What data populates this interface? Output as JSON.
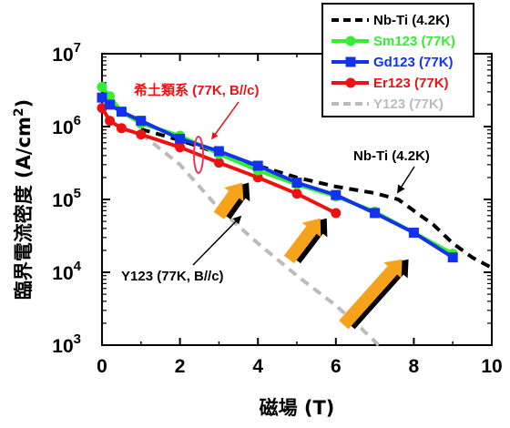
{
  "chart_data": {
    "type": "line",
    "xlabel": "磁場 (T)",
    "ylabel": "臨界電流密度 (A/cm2)",
    "ylabel_main": "臨界電流密度 (A/cm",
    "ylabel_sup": "2",
    "ylabel_end": ")",
    "xlim": [
      0,
      10
    ],
    "ylim": [
      1000,
      10000000
    ],
    "yscale": "log",
    "grid": false,
    "legend_position": "top-right",
    "x_ticks": [
      "0",
      "2",
      "4",
      "6",
      "8",
      "10"
    ],
    "y_ticks": [
      {
        "base": "10",
        "exp": "3"
      },
      {
        "base": "10",
        "exp": "4"
      },
      {
        "base": "10",
        "exp": "5"
      },
      {
        "base": "10",
        "exp": "6"
      },
      {
        "base": "10",
        "exp": "7"
      }
    ],
    "series": [
      {
        "name": "Nb-Ti (4.2K)",
        "color": "#000000",
        "style": "dashed",
        "marker": "none",
        "points": [
          [
            1,
            920000
          ],
          [
            2,
            650000
          ],
          [
            3,
            430000
          ],
          [
            4,
            290000
          ],
          [
            5,
            200000
          ],
          [
            6,
            150000
          ],
          [
            7,
            122000
          ],
          [
            7.6,
            100000
          ],
          [
            8,
            70000
          ],
          [
            8.5,
            45000
          ],
          [
            9,
            25000
          ],
          [
            9.5,
            16000
          ],
          [
            10,
            11500
          ]
        ]
      },
      {
        "name": "Sm123 (77K)",
        "color": "#33ee33",
        "style": "solid",
        "marker": "circle",
        "points": [
          [
            0,
            3500000
          ],
          [
            0.2,
            2600000
          ],
          [
            0.5,
            1600000
          ],
          [
            1,
            1100000
          ],
          [
            2,
            750000
          ],
          [
            3,
            420000
          ],
          [
            4,
            250000
          ],
          [
            5,
            160000
          ],
          [
            6,
            110000
          ],
          [
            7,
            68000
          ],
          [
            8,
            35000
          ],
          [
            9,
            18000
          ]
        ]
      },
      {
        "name": "Gd123 (77K)",
        "color": "#1133ee",
        "style": "solid",
        "marker": "square",
        "points": [
          [
            0,
            2500000
          ],
          [
            0.2,
            2000000
          ],
          [
            0.5,
            1600000
          ],
          [
            1,
            1200000
          ],
          [
            2,
            680000
          ],
          [
            3,
            460000
          ],
          [
            4,
            290000
          ],
          [
            5,
            170000
          ],
          [
            6,
            115000
          ],
          [
            7,
            65000
          ],
          [
            8,
            35000
          ],
          [
            9,
            16000
          ]
        ]
      },
      {
        "name": "Er123 (77K)",
        "color": "#ee1111",
        "style": "solid",
        "marker": "circle",
        "points": [
          [
            0,
            1800000
          ],
          [
            0.2,
            1200000
          ],
          [
            0.5,
            950000
          ],
          [
            1,
            780000
          ],
          [
            2,
            520000
          ],
          [
            3,
            320000
          ],
          [
            4,
            200000
          ],
          [
            5,
            120000
          ],
          [
            6,
            65000
          ]
        ]
      },
      {
        "name": "Y123 (77K)",
        "color": "#bbbbbb",
        "style": "dashed",
        "marker": "none",
        "points": [
          [
            1,
            800000
          ],
          [
            2,
            300000
          ],
          [
            3,
            75000
          ],
          [
            4,
            25000
          ],
          [
            5,
            9000
          ],
          [
            6,
            3500
          ],
          [
            6.6,
            1800
          ],
          [
            7.1,
            1000
          ]
        ]
      }
    ],
    "annotations": {
      "rare_earth": "希土類系 (77K, B//c)",
      "nbti": "Nb-Ti (4.2K)",
      "y123": "Y123 (77K, B//c)"
    },
    "arrows": [
      {
        "from": [
          3.0,
          60000
        ],
        "to": [
          3.6,
          170000
        ]
      },
      {
        "from": [
          4.8,
          15000
        ],
        "to": [
          5.6,
          55000
        ]
      },
      {
        "from": [
          6.2,
          1900
        ],
        "to": [
          7.7,
          15000
        ]
      }
    ]
  }
}
